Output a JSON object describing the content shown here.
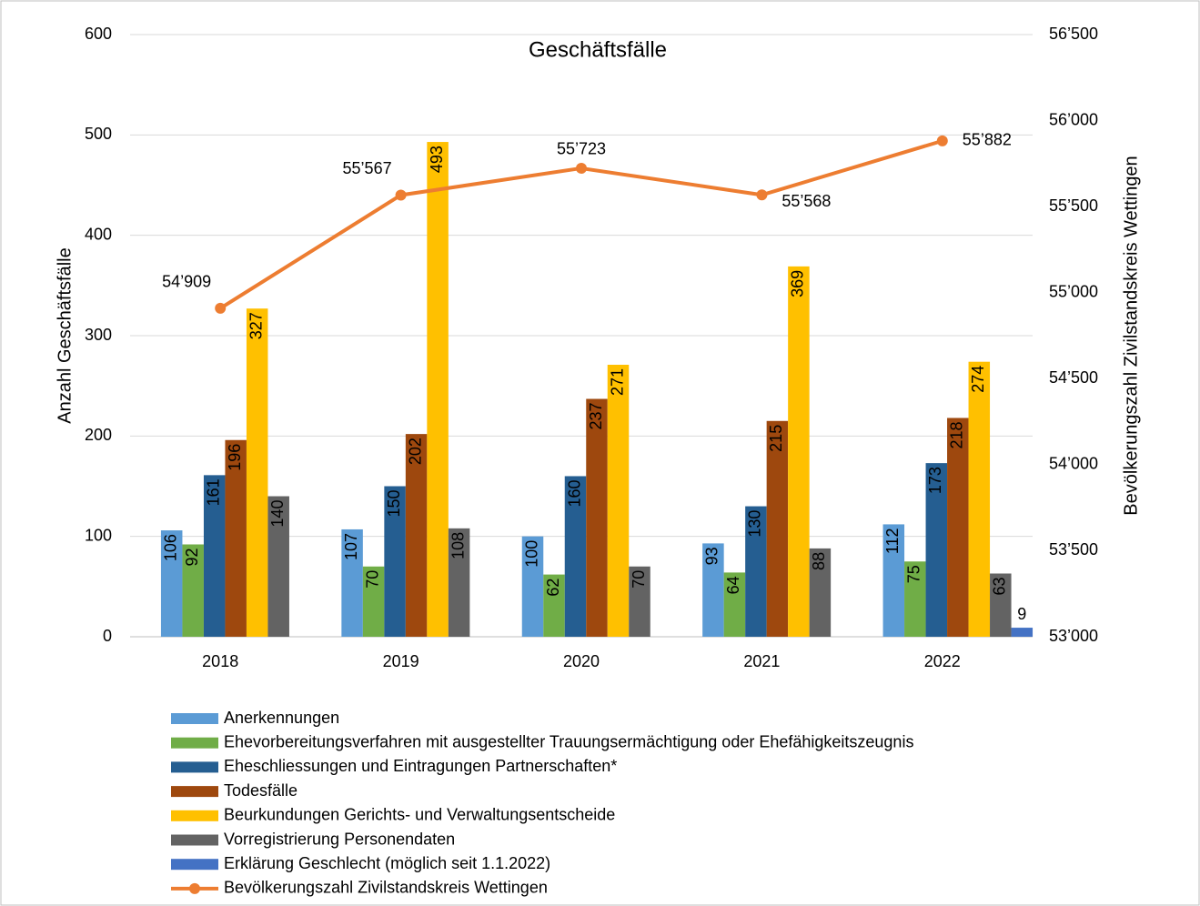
{
  "chart_data": {
    "type": "bar",
    "title": "Geschäftsfälle",
    "y_label": "Anzahl Geschäftsfälle",
    "y2_label": "Bevölkerungszahl Zivilstandskreis Wettingen",
    "categories": [
      "2018",
      "2019",
      "2020",
      "2021",
      "2022"
    ],
    "ylim": [
      0,
      600
    ],
    "yticks": [
      0,
      100,
      200,
      300,
      400,
      500,
      600
    ],
    "y2lim": [
      53000,
      56500
    ],
    "y2ticks": [
      {
        "value": 53000,
        "label": "53’000"
      },
      {
        "value": 53500,
        "label": "53’500"
      },
      {
        "value": 54000,
        "label": "54’000"
      },
      {
        "value": 54500,
        "label": "54’500"
      },
      {
        "value": 55000,
        "label": "55’000"
      },
      {
        "value": 55500,
        "label": "55’500"
      },
      {
        "value": 56000,
        "label": "56’000"
      },
      {
        "value": 56500,
        "label": "56’500"
      }
    ],
    "grid": true,
    "legend": "bottom",
    "series": [
      {
        "name": "Anerkennungen",
        "color": "#5B9BD5",
        "values": [
          106,
          107,
          100,
          93,
          112
        ]
      },
      {
        "name": "Ehevorbereitungsverfahren mit ausgestellter Trauungsermächtigung oder Ehefähigkeitszeugnis",
        "color": "#70AD47",
        "values": [
          92,
          70,
          62,
          64,
          75
        ]
      },
      {
        "name": "Eheschliessungen und Eintragungen Partnerschaften*",
        "color": "#255E91",
        "values": [
          161,
          150,
          160,
          130,
          173
        ]
      },
      {
        "name": "Todesfälle",
        "color": "#9E480E",
        "values": [
          196,
          202,
          237,
          215,
          218
        ]
      },
      {
        "name": "Beurkundungen Gerichts- und Verwaltungsentscheide",
        "color": "#FFC000",
        "values": [
          327,
          493,
          271,
          369,
          274
        ]
      },
      {
        "name": "Vorregistrierung Personendaten",
        "color": "#636363",
        "values": [
          140,
          108,
          70,
          88,
          63
        ]
      },
      {
        "name": "Erklärung Geschlecht (möglich seit 1.1.2022)",
        "color": "#4472C4",
        "values": [
          null,
          null,
          null,
          null,
          9
        ]
      },
      {
        "name": "Bevölkerungszahl Zivilstandskreis Wettingen",
        "color": "#ED7D31",
        "type": "line",
        "axis": "y2",
        "values": [
          54909,
          55567,
          55723,
          55568,
          55882
        ],
        "value_labels": [
          "54’909",
          "55’567",
          "55’723",
          "55’568",
          "55’882"
        ]
      }
    ]
  }
}
